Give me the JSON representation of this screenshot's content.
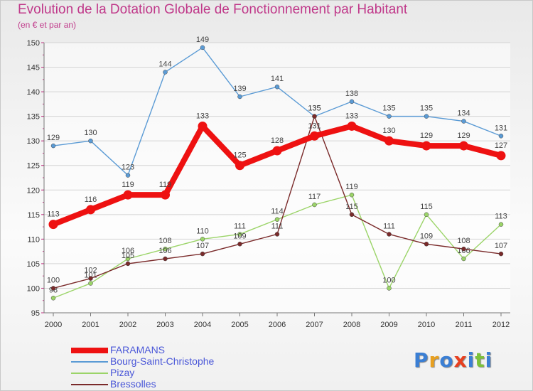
{
  "header": {
    "title": "Evolution de la Dotation Globale de Fonctionnement par Habitant",
    "subtitle": "(en € et par an)"
  },
  "chart_data": {
    "type": "line",
    "title": "Evolution de la Dotation Globale de Fonctionnement par Habitant",
    "subtitle": "(en € et par an)",
    "xlabel": "",
    "ylabel": "",
    "ylim": [
      95,
      150
    ],
    "yticks": [
      95,
      100,
      105,
      110,
      115,
      120,
      125,
      130,
      135,
      140,
      145,
      150
    ],
    "categories": [
      "2000",
      "2001",
      "2002",
      "2003",
      "2004",
      "2005",
      "2006",
      "2007",
      "2008",
      "2009",
      "2010",
      "2011",
      "2012"
    ],
    "grid": "horizontal",
    "legend_position": "bottom-left",
    "series": [
      {
        "name": "FARAMANS",
        "color": "#ee1111",
        "emphasis": true,
        "values": [
          113,
          116,
          119,
          119,
          133,
          125,
          128,
          131,
          133,
          130,
          129,
          129,
          127
        ]
      },
      {
        "name": "Bourg-Saint-Christophe",
        "color": "#5b9bd5",
        "emphasis": false,
        "values": [
          129,
          130,
          123,
          144,
          149,
          139,
          141,
          135,
          138,
          135,
          135,
          134,
          131
        ]
      },
      {
        "name": "Pizay",
        "color": "#9bd468",
        "emphasis": false,
        "values": [
          98,
          101,
          106,
          108,
          110,
          111,
          114,
          117,
          119,
          100,
          115,
          106,
          113
        ]
      },
      {
        "name": "Bressolles",
        "color": "#7a2a2a",
        "emphasis": false,
        "values": [
          100,
          102,
          105,
          106,
          107,
          109,
          111,
          135,
          115,
          111,
          109,
          108,
          107
        ]
      }
    ]
  },
  "logo": {
    "letters": [
      "P",
      "r",
      "o",
      "x",
      "i",
      "t",
      "i"
    ],
    "colors": [
      "#3b7fd4",
      "#e8a020",
      "#3b7fd4",
      "#e84020",
      "#3b7fd4",
      "#7cc23a",
      "#3b7fd4"
    ]
  }
}
